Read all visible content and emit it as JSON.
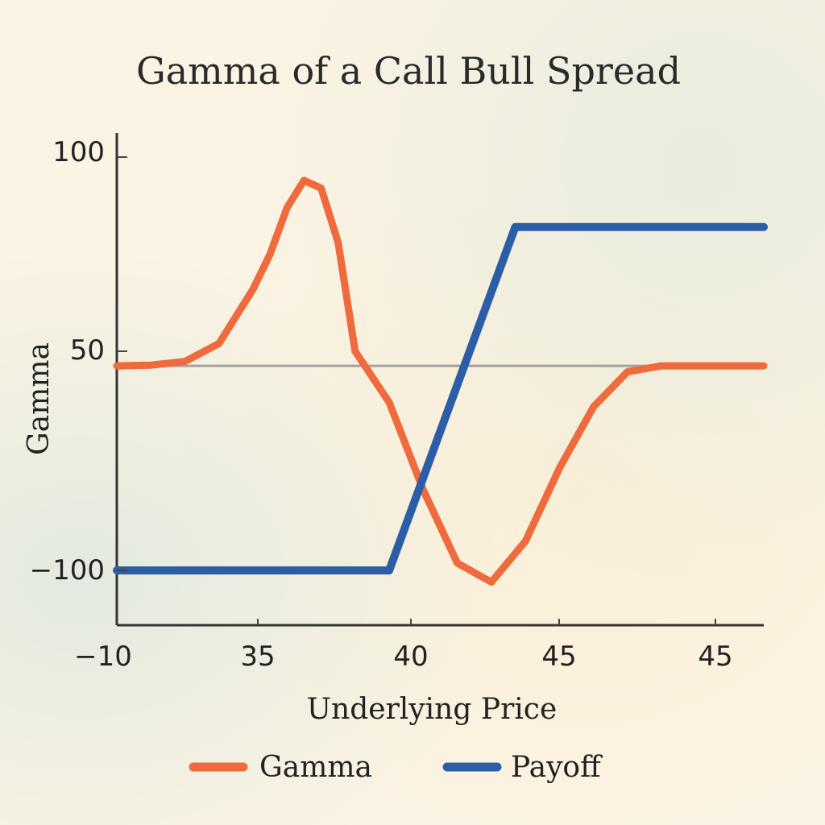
{
  "chart_data": {
    "type": "line",
    "title": "Gamma of a Call Bull Spread",
    "xlabel": "Underlying Price",
    "ylabel": "Gamma",
    "x_tick_labels": [
      "−10",
      "35",
      "40",
      "45",
      "45"
    ],
    "y_tick_labels": [
      "100",
      "50",
      "−100"
    ],
    "grid": false,
    "legend_position": "bottom",
    "series": [
      {
        "name": "Gamma",
        "color": "#ef6a3d",
        "x": [
          -10,
          0,
          10,
          20,
          30,
          35,
          40,
          45,
          50,
          55,
          60,
          70,
          80,
          90,
          100,
          110,
          120,
          130,
          140,
          150,
          160,
          170,
          180
        ],
        "y": [
          40,
          40.5,
          43,
          52,
          66,
          75,
          87,
          94,
          92,
          78,
          50,
          15,
          -45,
          -95,
          -108,
          -80,
          -30,
          12,
          36,
          40,
          40,
          40,
          40
        ]
      },
      {
        "name": "Payoff",
        "color": "#2c5ea8",
        "x": [
          -10,
          35,
          70,
          107,
          180
        ],
        "y": [
          -100,
          -100,
          -100,
          82,
          82
        ]
      }
    ],
    "reference_line": {
      "y": 40,
      "color": "#8f8f8f"
    },
    "legend": [
      "Gamma",
      "Payoff"
    ]
  }
}
